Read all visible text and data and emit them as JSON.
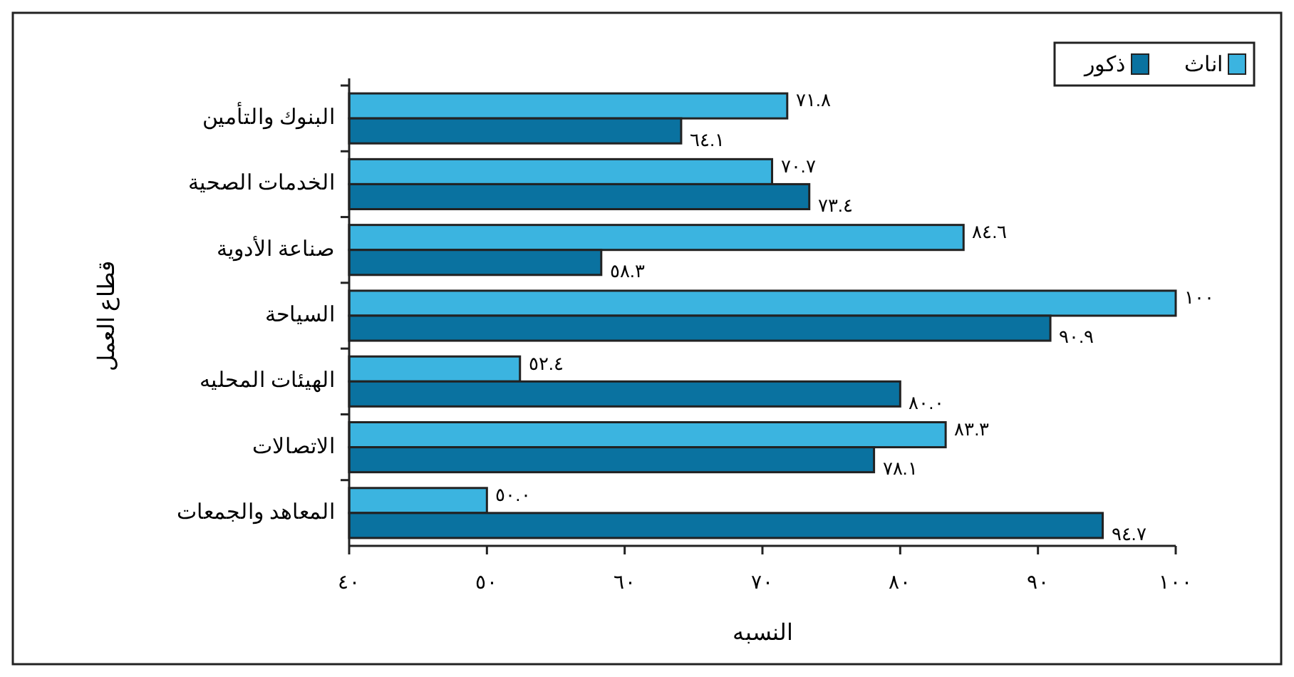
{
  "chart_data": {
    "type": "bar",
    "orientation": "horizontal",
    "xlabel": "النسبه",
    "ylabel": "قطاع العمل",
    "categories": [
      "البنوك والتأمين",
      "الخدمات الصحية",
      "صناعة الأدوية",
      "السياحة",
      "الهيئات المحليه",
      "الاتصالات",
      "المعاهد والجمعات"
    ],
    "series": [
      {
        "name": "اناث",
        "color": "#3bb4e0",
        "values": [
          71.8,
          70.7,
          84.6,
          100,
          52.4,
          83.3,
          50.0
        ],
        "value_labels": [
          "٧١.٨",
          "٧٠.٧",
          "٨٤.٦",
          "١٠٠",
          "٥٢.٤",
          "٨٣.٣",
          "٥٠.٠"
        ]
      },
      {
        "name": "ذكور",
        "color": "#0a72a0",
        "values": [
          64.1,
          73.4,
          58.3,
          90.9,
          80.0,
          78.1,
          94.7
        ],
        "value_labels": [
          "٦٤.١",
          "٧٣.٤",
          "٥٨.٣",
          "٩٠.٩",
          "٨٠.٠",
          "٧٨.١",
          "٩٤.٧"
        ]
      }
    ],
    "xlim": [
      40,
      100
    ],
    "xticks": [
      {
        "value": 40,
        "label": "٤٠"
      },
      {
        "value": 50,
        "label": "٥٠"
      },
      {
        "value": 60,
        "label": "٦٠"
      },
      {
        "value": 70,
        "label": "٧٠"
      },
      {
        "value": 80,
        "label": "٨٠"
      },
      {
        "value": 90,
        "label": "٩٠"
      },
      {
        "value": 100,
        "label": "١٠٠"
      }
    ],
    "legend": "top right"
  }
}
